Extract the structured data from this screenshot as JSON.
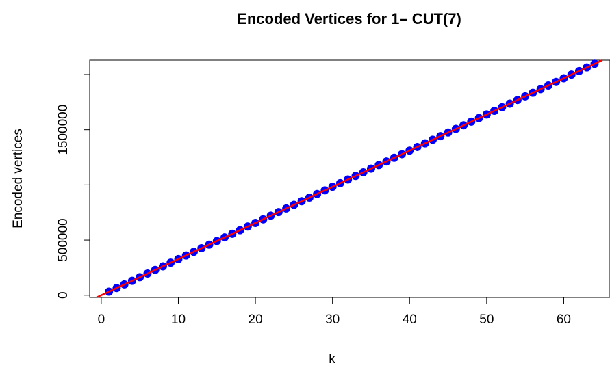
{
  "chart_data": {
    "type": "scatter",
    "title": "Encoded Vertices for 1– CUT(7)",
    "xlabel": "k",
    "ylabel": "Encoded  vertices",
    "xlim": [
      -1.5,
      66
    ],
    "ylim": [
      -20000,
      2130000
    ],
    "x_ticks": [
      0,
      10,
      20,
      30,
      40,
      50,
      60
    ],
    "x_tick_labels": [
      "0",
      "10",
      "20",
      "30",
      "40",
      "50",
      "60"
    ],
    "y_ticks": [
      0,
      500000,
      1000000,
      1500000,
      2000000
    ],
    "y_tick_labels": [
      "0",
      "500000",
      "",
      "1500000",
      ""
    ],
    "series": [
      {
        "marker": "filled-circle",
        "color": "#0000ff",
        "x": [
          1,
          2,
          3,
          4,
          5,
          6,
          7,
          8,
          9,
          10,
          11,
          12,
          13,
          14,
          15,
          16,
          17,
          18,
          19,
          20,
          21,
          22,
          23,
          24,
          25,
          26,
          27,
          28,
          29,
          30,
          31,
          32,
          33,
          34,
          35,
          36,
          37,
          38,
          39,
          40,
          41,
          42,
          43,
          44,
          45,
          46,
          47,
          48,
          49,
          50,
          51,
          52,
          53,
          54,
          55,
          56,
          57,
          58,
          59,
          60,
          61,
          62,
          63,
          64
        ],
        "slope": 32768,
        "intercept": 0
      }
    ],
    "fit_line": {
      "color": "#ff0000",
      "slope": 32768,
      "intercept": 0
    },
    "grid": false,
    "legend": "none"
  }
}
